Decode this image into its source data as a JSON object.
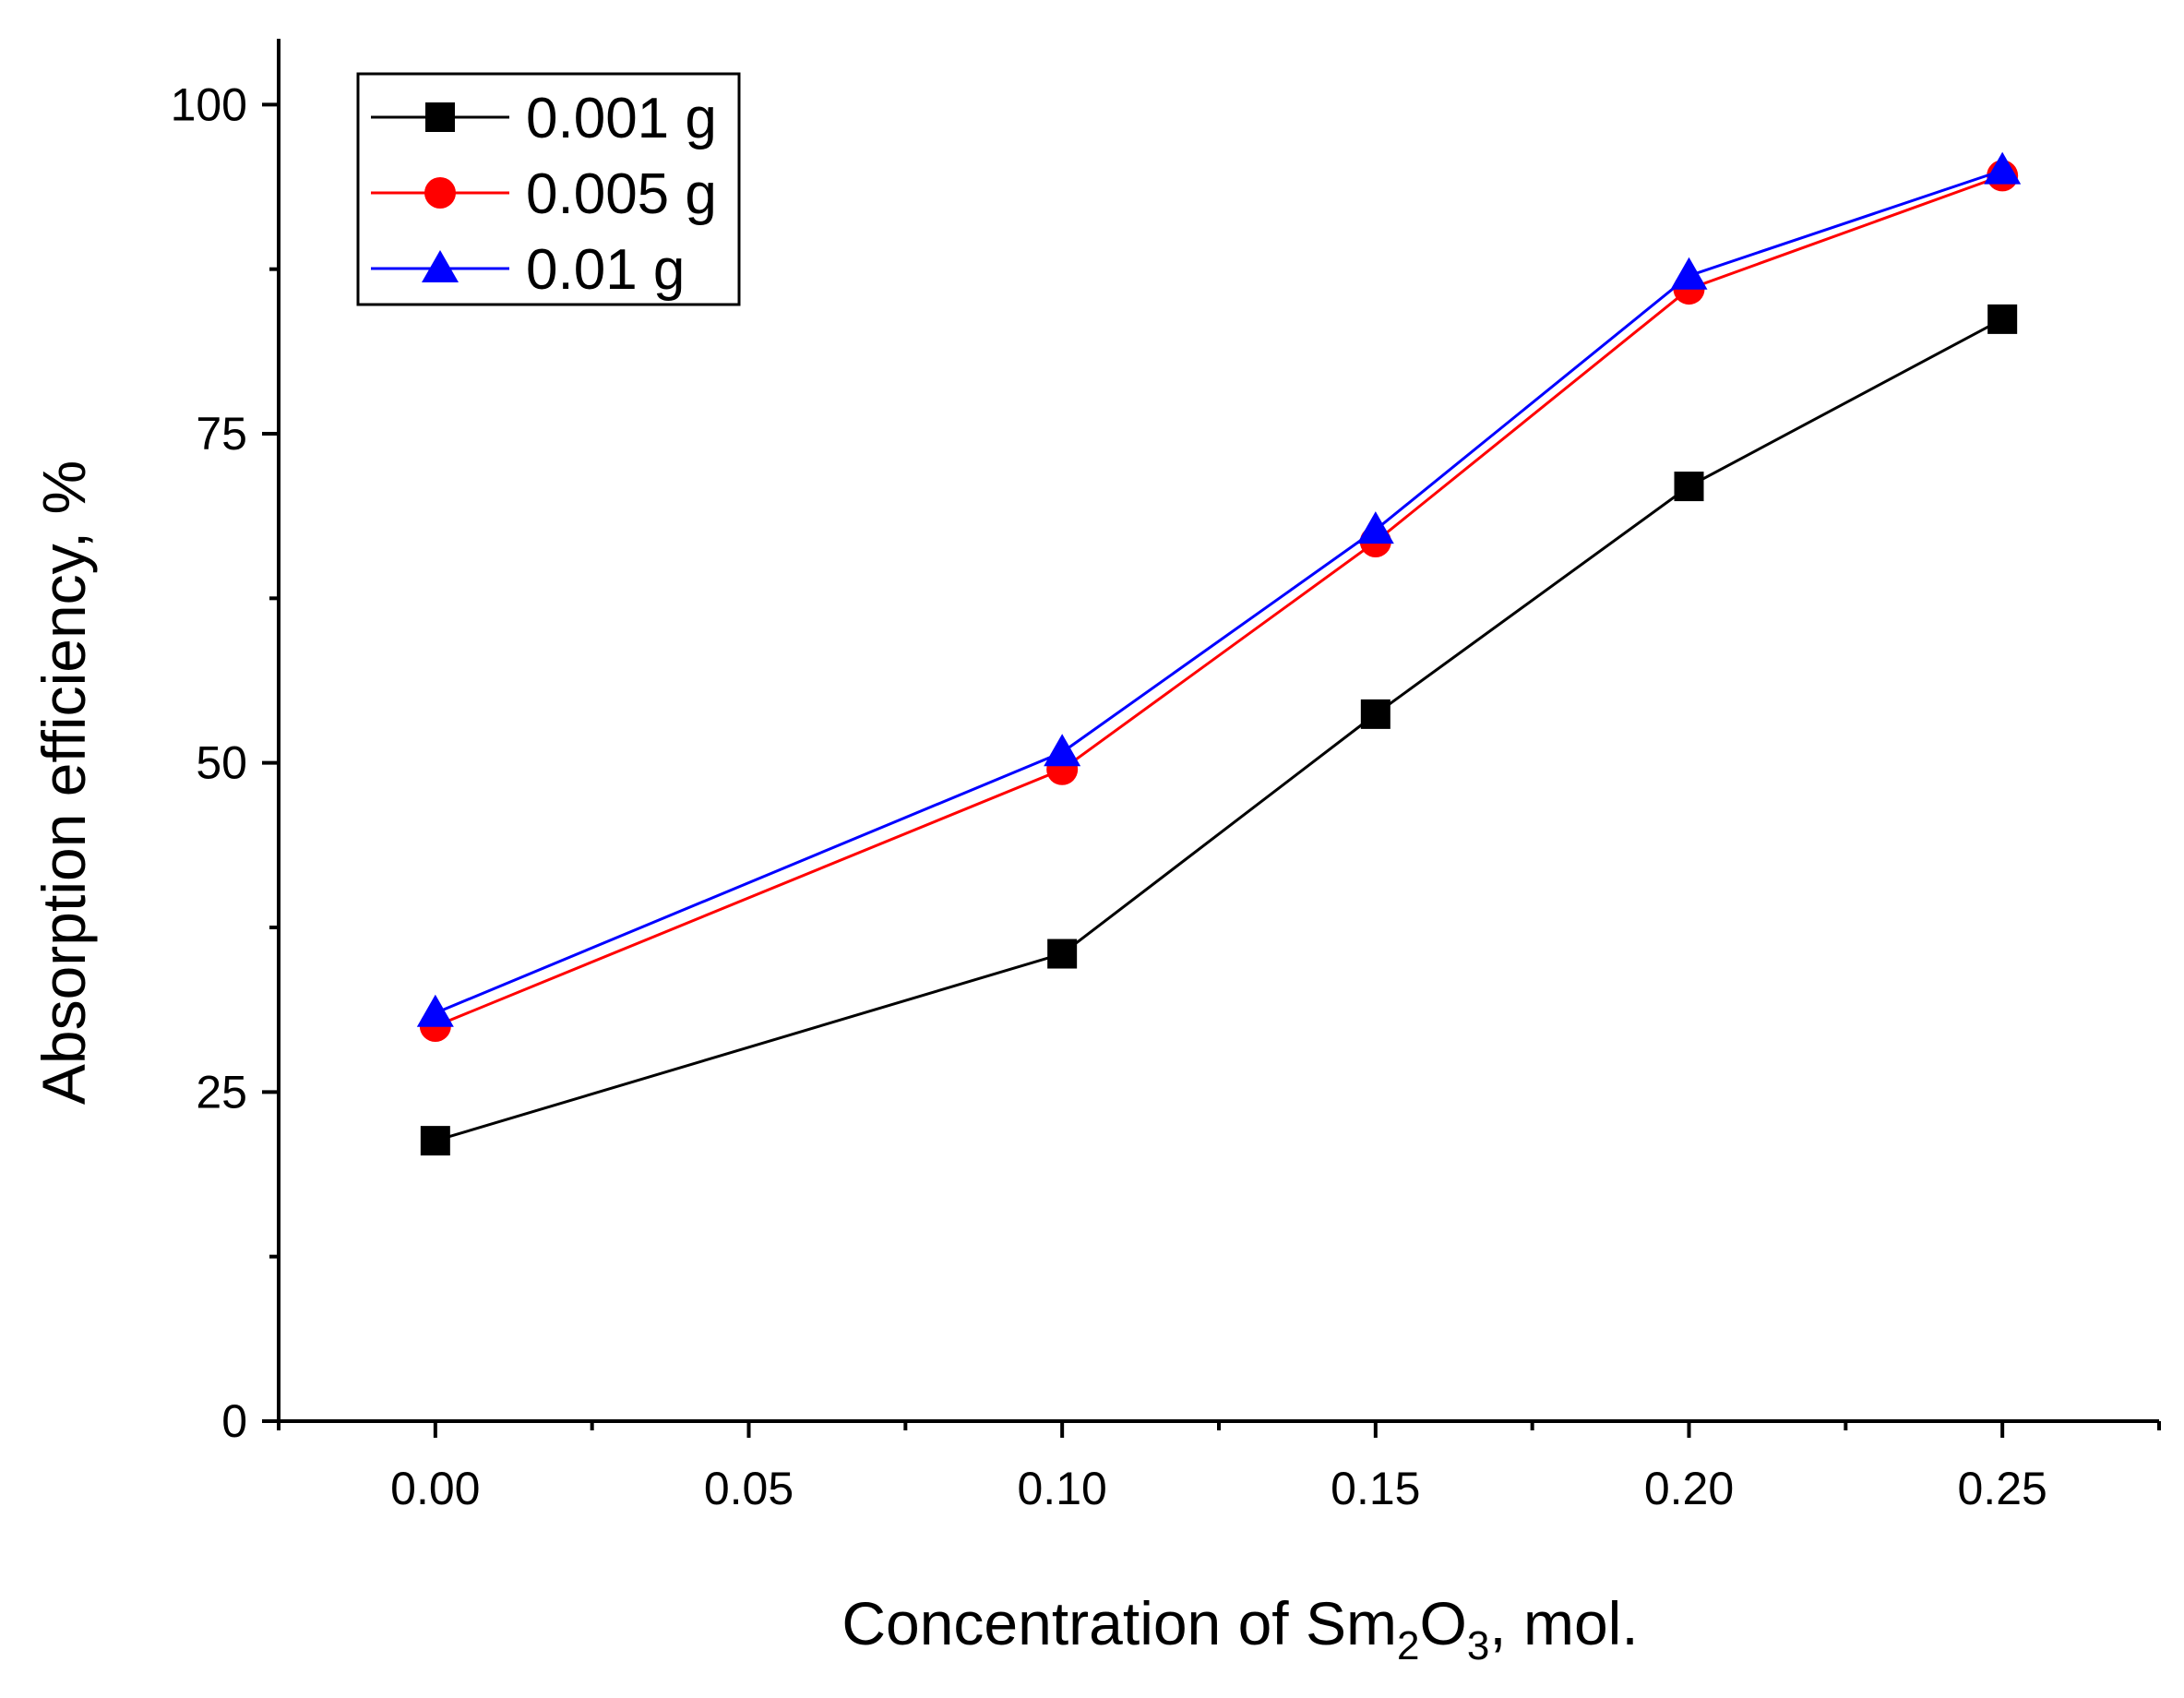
{
  "chart_data": {
    "type": "line",
    "title": "",
    "xlabel": "Concentration of Sm2O3, mol.",
    "xlabel_parts": {
      "prefix": "Concentration of Sm",
      "sub1": "2",
      "mid": "O",
      "sub2": "3",
      "suffix": ", mol."
    },
    "ylabel": "Absorption efficiency, %",
    "xlim": [
      -0.025,
      0.275
    ],
    "ylim": [
      0,
      105
    ],
    "x_ticks": [
      0.0,
      0.05,
      0.1,
      0.15,
      0.2,
      0.25
    ],
    "x_tick_labels": [
      "0.00",
      "0.05",
      "0.10",
      "0.15",
      "0.20",
      "0.25"
    ],
    "y_ticks": [
      0,
      25,
      50,
      75,
      100
    ],
    "y_tick_labels": [
      "0",
      "25",
      "50",
      "75",
      "100"
    ],
    "legend_position": "top-left",
    "grid": false,
    "x": [
      0.0,
      0.1,
      0.15,
      0.2,
      0.25
    ],
    "series": [
      {
        "name": "0.001 g",
        "color": "#000000",
        "marker": "square",
        "values": [
          21.3,
          35.5,
          53.7,
          71.0,
          83.7
        ]
      },
      {
        "name": "0.005 g",
        "color": "#ff0000",
        "marker": "circle",
        "values": [
          30.0,
          49.5,
          66.8,
          86.0,
          94.6
        ]
      },
      {
        "name": "0.01 g",
        "color": "#0000ff",
        "marker": "triangle",
        "values": [
          31.0,
          50.8,
          67.7,
          87.0,
          95.0
        ]
      }
    ]
  }
}
